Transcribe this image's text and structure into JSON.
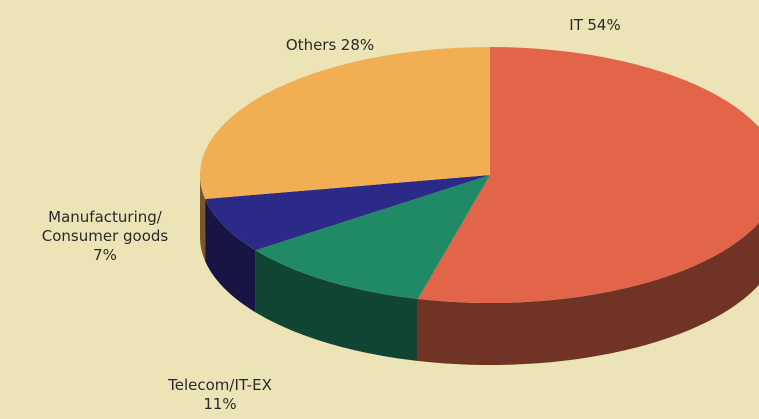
{
  "chart_data": {
    "type": "pie",
    "categories": [
      "IT",
      "Telecom/IT-EX",
      "Manufacturing/ Consumer goods",
      "Others"
    ],
    "values": [
      54,
      11,
      7,
      28
    ],
    "value_labels": [
      "54%",
      "11%",
      "7%",
      "28%"
    ],
    "colors": [
      "#e2654a",
      "#1f8a65",
      "#2b2a86",
      "#f2ae52"
    ]
  }
}
